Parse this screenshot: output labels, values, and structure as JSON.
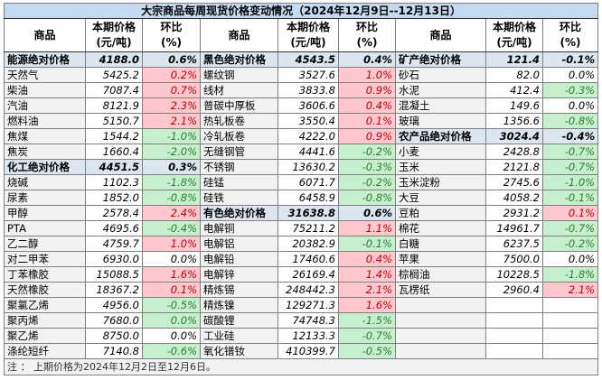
{
  "title": "大宗商品每周现货价格变动情况（2024年12月9日--12月13日）",
  "headers": {
    "name": "商品",
    "price": "本期价格\n(元/吨)",
    "pct": "环比\n(%)"
  },
  "colors": {
    "title_bg": "#c5d9f1",
    "category_bg": "#dce6f1",
    "up_bg": "#ffc7ce",
    "up_text": "#c00000",
    "down_bg": "#c6efce",
    "down_text": "#2e7d32"
  },
  "groups": [
    [
      {
        "name": "能源绝对价格",
        "price": "4188.0",
        "pct": "0.6%",
        "cat": true
      },
      {
        "name": "天然气",
        "price": "5425.2",
        "pct": "0.2%",
        "shade": "up"
      },
      {
        "name": "柴油",
        "price": "7087.4",
        "pct": "0.7%",
        "shade": "up"
      },
      {
        "name": "汽油",
        "price": "8121.9",
        "pct": "2.3%",
        "shade": "up"
      },
      {
        "name": "燃料油",
        "price": "5150.7",
        "pct": "2.1%",
        "shade": "up"
      },
      {
        "name": "焦煤",
        "price": "1544.2",
        "pct": "-1.0%",
        "shade": "down"
      },
      {
        "name": "焦炭",
        "price": "1660.4",
        "pct": "-2.0%",
        "shade": "down"
      },
      {
        "name": "化工绝对价格",
        "price": "4451.5",
        "pct": "0.3%",
        "cat": true
      },
      {
        "name": "烧碱",
        "price": "1102.3",
        "pct": "-1.8%",
        "shade": "down"
      },
      {
        "name": "尿素",
        "price": "1852.0",
        "pct": "-0.8%",
        "shade": "down"
      },
      {
        "name": "甲醇",
        "price": "2578.4",
        "pct": "2.4%",
        "shade": "up"
      },
      {
        "name": "PTA",
        "price": "4695.6",
        "pct": "-0.4%",
        "shade": "down"
      },
      {
        "name": "乙二醇",
        "price": "4759.7",
        "pct": "1.0%",
        "shade": "up"
      },
      {
        "name": "对二甲苯",
        "price": "6930.0",
        "pct": "0.0%"
      },
      {
        "name": "丁苯橡胶",
        "price": "15088.5",
        "pct": "1.6%",
        "shade": "up"
      },
      {
        "name": "天然橡胶",
        "price": "18367.2",
        "pct": "0.1%",
        "shade": "up"
      },
      {
        "name": "聚氯乙烯",
        "price": "4956.0",
        "pct": "-0.5%",
        "shade": "down"
      },
      {
        "name": "聚丙烯",
        "price": "7680.0",
        "pct": "0.0%",
        "shade": "down"
      },
      {
        "name": "聚乙烯",
        "price": "8750.0",
        "pct": "0.0%"
      },
      {
        "name": "涤纶短纤",
        "price": "7140.8",
        "pct": "-0.6%",
        "shade": "down"
      }
    ],
    [
      {
        "name": "黑色绝对价格",
        "price": "4543.5",
        "pct": "0.4%",
        "cat": true
      },
      {
        "name": "螺纹钢",
        "price": "3527.6",
        "pct": "1.0%",
        "shade": "up"
      },
      {
        "name": "线材",
        "price": "3833.8",
        "pct": "0.9%",
        "shade": "up"
      },
      {
        "name": "普碳中厚板",
        "price": "3606.6",
        "pct": "0.4%",
        "shade": "up"
      },
      {
        "name": "热轧板卷",
        "price": "3550.4",
        "pct": "0.1%",
        "shade": "up"
      },
      {
        "name": "冷轧板卷",
        "price": "4222.0",
        "pct": "0.9%",
        "shade": "up"
      },
      {
        "name": "无缝钢管",
        "price": "4441.6",
        "pct": "-0.2%",
        "shade": "down"
      },
      {
        "name": "不锈钢",
        "price": "13630.2",
        "pct": "-0.3%",
        "shade": "down"
      },
      {
        "name": "硅锰",
        "price": "6071.7",
        "pct": "-0.2%",
        "shade": "down"
      },
      {
        "name": "硅铁",
        "price": "6458.9",
        "pct": "-0.8%",
        "shade": "down"
      },
      {
        "name": "有色绝对价格",
        "price": "31638.8",
        "pct": "0.6%",
        "cat": true
      },
      {
        "name": "电解铜",
        "price": "75211.2",
        "pct": "1.1%",
        "shade": "up"
      },
      {
        "name": "电解铝",
        "price": "20382.9",
        "pct": "-0.1%",
        "shade": "down"
      },
      {
        "name": "电解铅",
        "price": "17460.6",
        "pct": "0.4%",
        "shade": "up"
      },
      {
        "name": "电解锌",
        "price": "26169.4",
        "pct": "1.4%",
        "shade": "up"
      },
      {
        "name": "精炼锡",
        "price": "248442.3",
        "pct": "2.1%",
        "shade": "up"
      },
      {
        "name": "精炼镍",
        "price": "129271.3",
        "pct": "1.6%",
        "shade": "up"
      },
      {
        "name": "碳酸锂",
        "price": "74748.3",
        "pct": "-1.5%",
        "shade": "down"
      },
      {
        "name": "工业硅",
        "price": "12133.3",
        "pct": "-0.7%",
        "shade": "down"
      },
      {
        "name": "氧化镨钕",
        "price": "410399.7",
        "pct": "-0.5%",
        "shade": "down"
      }
    ],
    [
      {
        "name": "矿产绝对价格",
        "price": "121.4",
        "pct": "-0.1%",
        "cat": true
      },
      {
        "name": "砂石",
        "price": "82.0",
        "pct": "0.0%"
      },
      {
        "name": "水泥",
        "price": "412.4",
        "pct": "-0.3%",
        "shade": "down"
      },
      {
        "name": "混凝土",
        "price": "149.6",
        "pct": "0.0%"
      },
      {
        "name": "玻璃",
        "price": "1356.6",
        "pct": "-0.8%",
        "shade": "down"
      },
      {
        "name": "农产品绝对价格",
        "price": "3024.4",
        "pct": "-0.4%",
        "cat": true
      },
      {
        "name": "小麦",
        "price": "2428.8",
        "pct": "-0.7%",
        "shade": "down"
      },
      {
        "name": "玉米",
        "price": "2121.8",
        "pct": "-0.7%",
        "shade": "down"
      },
      {
        "name": "玉米淀粉",
        "price": "2745.6",
        "pct": "-1.0%",
        "shade": "down"
      },
      {
        "name": "大豆",
        "price": "4058.2",
        "pct": "-0.1%",
        "shade": "down"
      },
      {
        "name": "豆粕",
        "price": "2931.2",
        "pct": "0.1%",
        "shade": "up"
      },
      {
        "name": "棉花",
        "price": "14961.7",
        "pct": "-0.7%",
        "shade": "down"
      },
      {
        "name": "白糖",
        "price": "6237.5",
        "pct": "-0.2%",
        "shade": "down"
      },
      {
        "name": "苹果",
        "price": "7500.0",
        "pct": "0.0%"
      },
      {
        "name": "棕榈油",
        "price": "10228.5",
        "pct": "-1.8%",
        "shade": "down"
      },
      {
        "name": "瓦楞纸",
        "price": "2960.4",
        "pct": "2.1%",
        "shade": "up"
      }
    ]
  ],
  "note": "注 ： 上期价格为2024年12月2日至12月6日。"
}
